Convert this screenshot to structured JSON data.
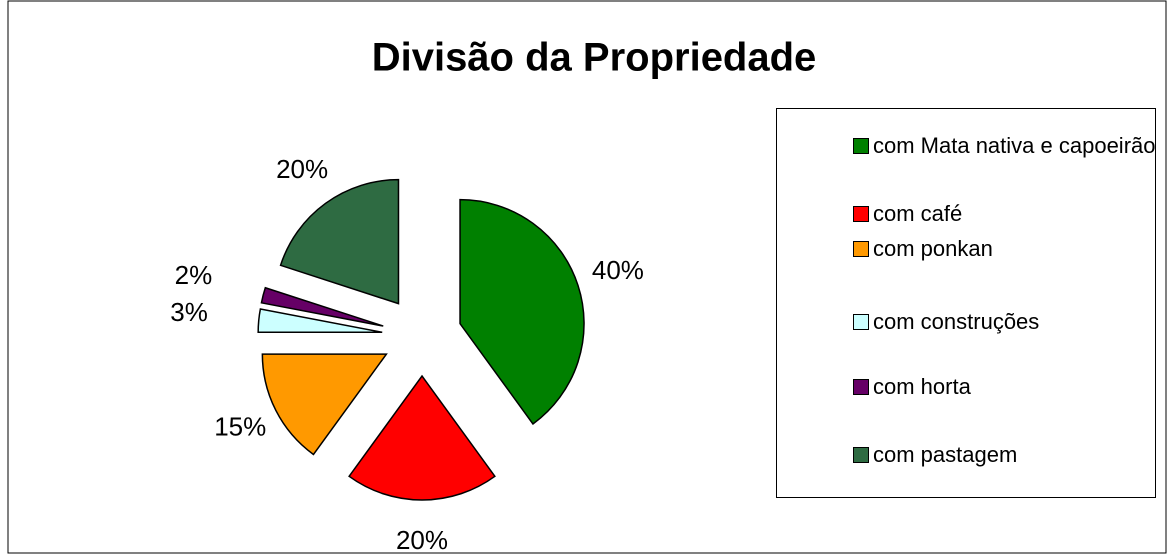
{
  "chart_data": {
    "type": "pie",
    "title": "Divisão da Propriedade",
    "categories": [
      "com Mata nativa e capoeirão",
      "com café",
      "com ponkan",
      "com construções",
      "com horta",
      "com pastagem"
    ],
    "values": [
      40,
      20,
      15,
      3,
      2,
      20
    ],
    "value_labels": [
      "40%",
      "20%",
      "15%",
      "3%",
      "2%",
      "20%"
    ],
    "colors": [
      "#008000",
      "#ff0000",
      "#ff9900",
      "#ccffff",
      "#660066",
      "#2e6b42"
    ],
    "legend": "right"
  }
}
